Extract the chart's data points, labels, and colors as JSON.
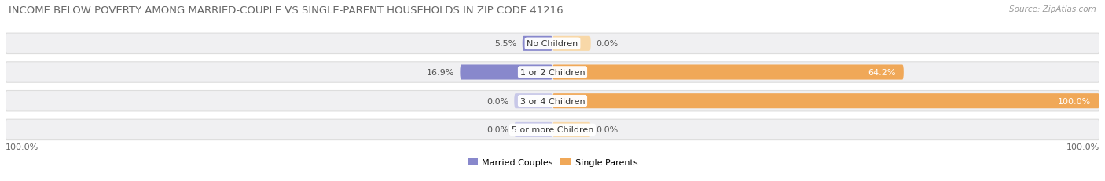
{
  "title": "INCOME BELOW POVERTY AMONG MARRIED-COUPLE VS SINGLE-PARENT HOUSEHOLDS IN ZIP CODE 41216",
  "source": "Source: ZipAtlas.com",
  "categories": [
    "No Children",
    "1 or 2 Children",
    "3 or 4 Children",
    "5 or more Children"
  ],
  "married_values": [
    5.5,
    16.9,
    0.0,
    0.0
  ],
  "single_values": [
    0.0,
    64.2,
    100.0,
    0.0
  ],
  "married_color": "#8888cc",
  "single_color": "#f0a858",
  "married_light": "#c8c8e8",
  "single_light": "#f8d8a8",
  "row_bg_color": "#f0f0f2",
  "row_border_color": "#dddddd",
  "bar_height": 0.52,
  "legend_married": "Married Couples",
  "legend_single": "Single Parents",
  "x_left_label": "100.0%",
  "x_right_label": "100.0%",
  "max_val": 100.0,
  "zero_bar_width": 7.0,
  "title_fontsize": 9.5,
  "source_fontsize": 7.5,
  "label_fontsize": 8.0,
  "category_fontsize": 8.0,
  "inside_label_color": "#ffffff",
  "outside_label_color": "#555555",
  "inside_threshold": 15.0
}
